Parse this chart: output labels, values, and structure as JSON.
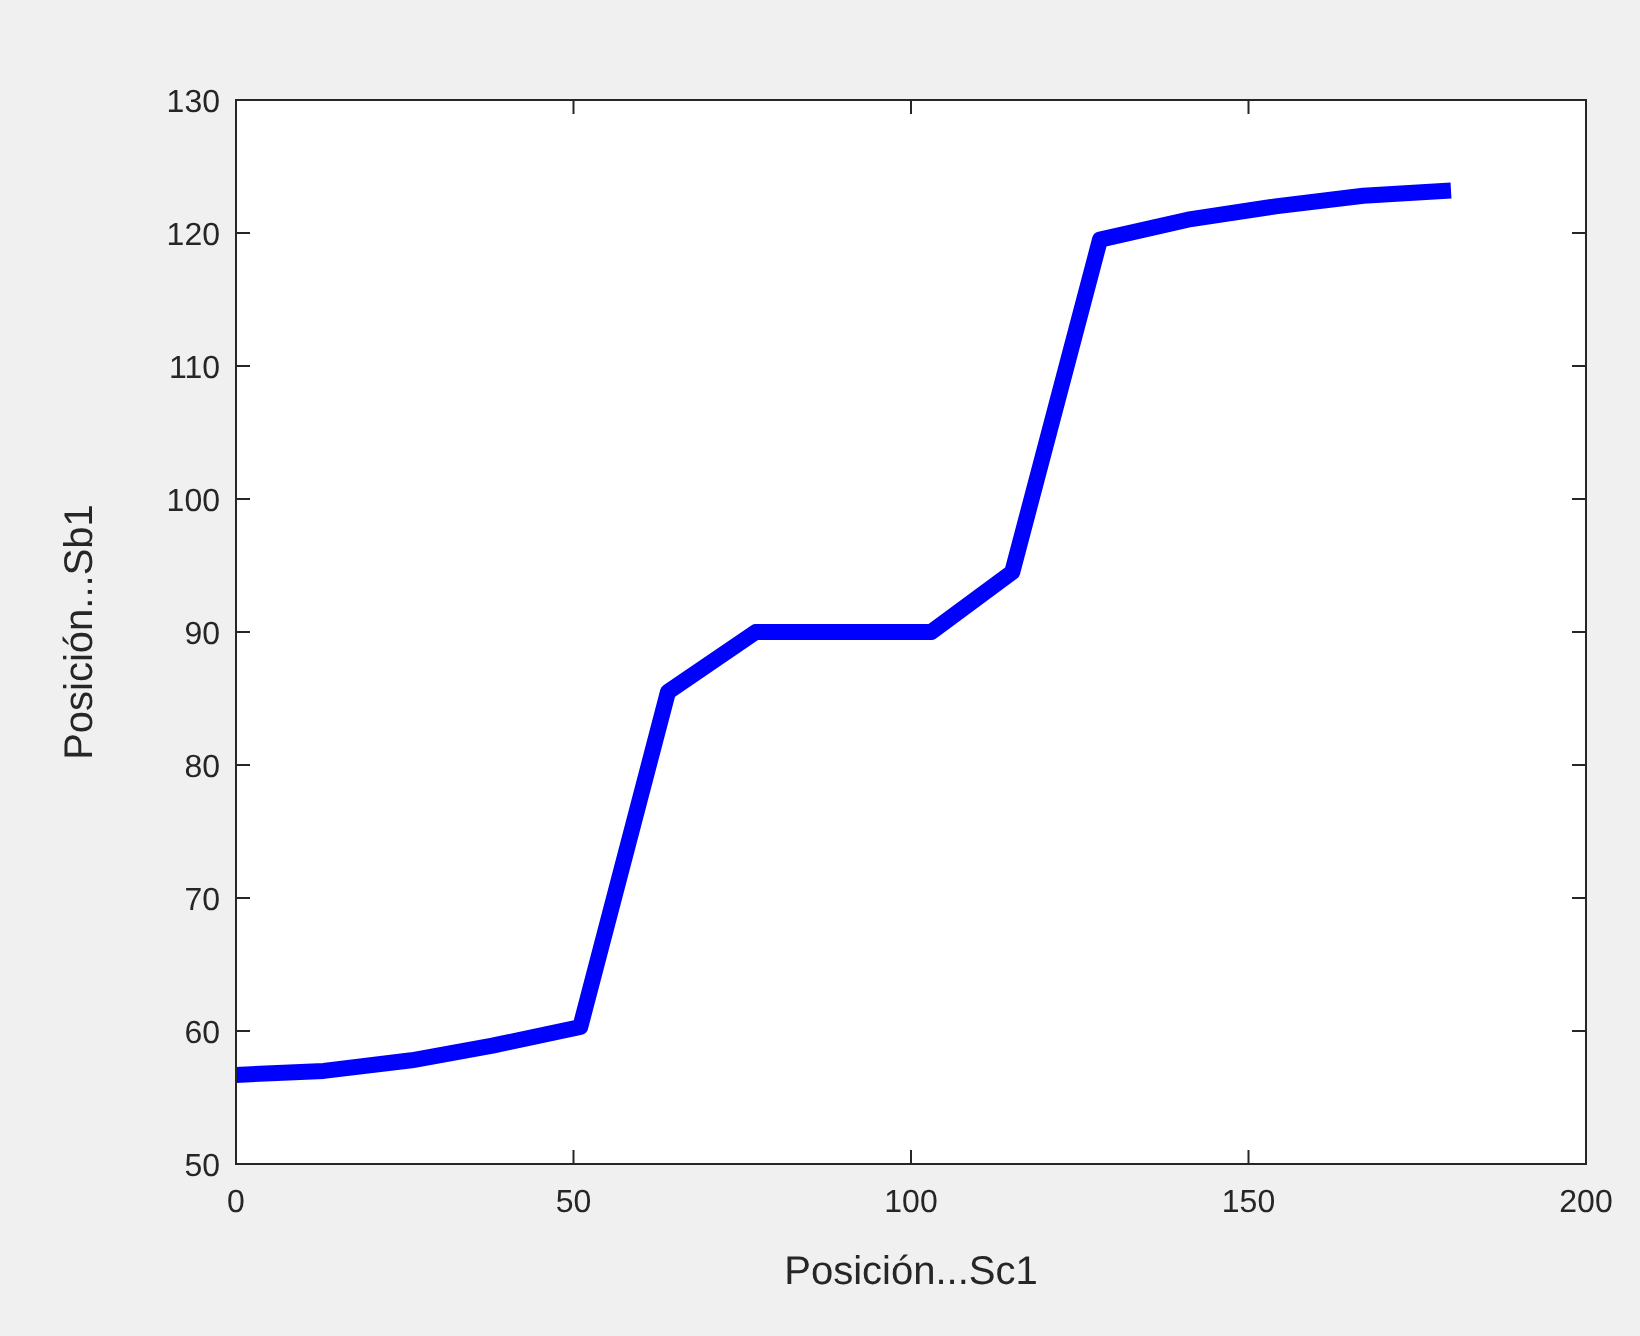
{
  "chart_data": {
    "type": "line",
    "xlabel": "Posición...Sc1",
    "ylabel": "Posición...Sb1",
    "x": [
      0,
      13,
      26,
      38,
      51,
      64,
      77,
      90,
      103,
      115,
      128,
      141,
      154,
      167,
      180
    ],
    "series": [
      {
        "color": "#0000ff",
        "values": [
          56.7,
          57,
          57.8,
          58.9,
          60.3,
          85.5,
          90,
          90,
          90,
          94.5,
          119.5,
          121,
          122,
          122.8,
          123.2
        ]
      }
    ],
    "xlim": [
      0,
      200
    ],
    "xticks": [
      0,
      50,
      100,
      150,
      200
    ],
    "ylim": [
      50,
      130
    ],
    "yticks": [
      50,
      60,
      70,
      80,
      90,
      100,
      110,
      120,
      130
    ],
    "grid": false,
    "marker": "none",
    "line_style": "solid"
  }
}
